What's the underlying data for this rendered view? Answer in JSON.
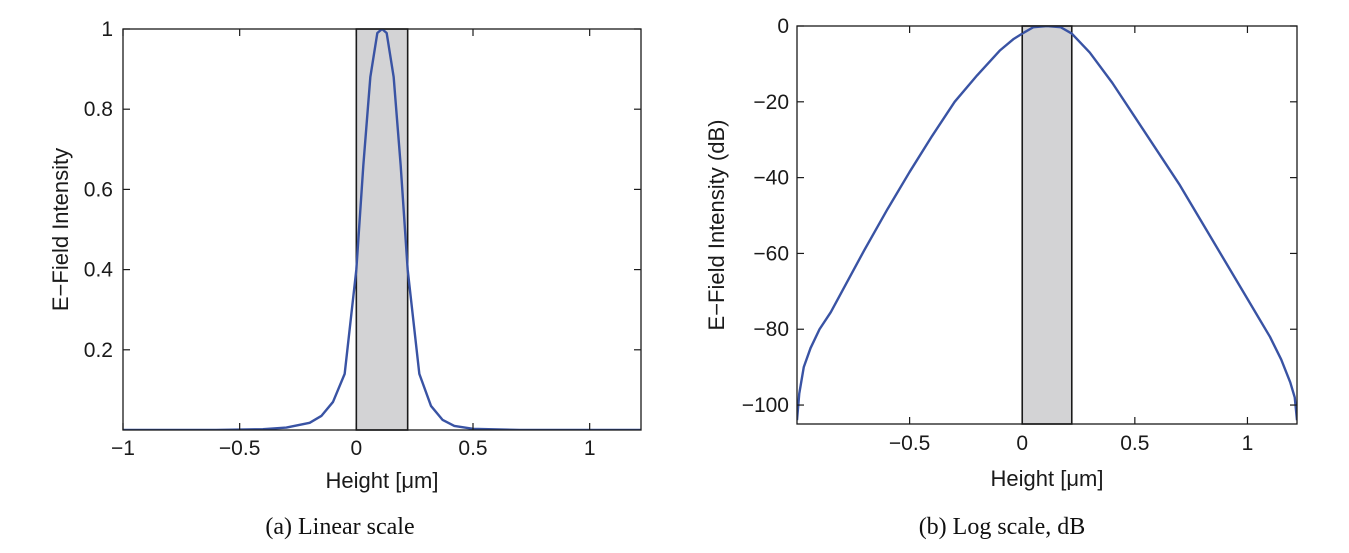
{
  "chart_data": [
    {
      "id": "a",
      "type": "line",
      "caption": "(a) Linear scale",
      "xlabel": "Height [μm]",
      "ylabel": "E−Field Intensity",
      "xlim": [
        -1.0,
        1.22
      ],
      "ylim": [
        0.0,
        1.0
      ],
      "xticks": [
        -1,
        -0.5,
        0,
        0.5,
        1
      ],
      "xtick_labels": [
        "−1",
        "−0.5",
        "0",
        "0.5",
        "1"
      ],
      "yticks": [
        0.2,
        0.4,
        0.6,
        0.8,
        1
      ],
      "ytick_labels": [
        "0.2",
        "0.4",
        "0.6",
        "0.8",
        "1"
      ],
      "shaded_region": {
        "x": [
          0.0,
          0.22
        ],
        "color": "#d3d3d5",
        "label": ""
      },
      "series": [
        {
          "name": "E-field intensity",
          "color": "#3953a4",
          "x": [
            -1.0,
            -0.6,
            -0.4,
            -0.3,
            -0.2,
            -0.15,
            -0.1,
            -0.05,
            0.0,
            0.03,
            0.06,
            0.09,
            0.11,
            0.13,
            0.16,
            0.19,
            0.22,
            0.27,
            0.32,
            0.37,
            0.42,
            0.5,
            0.7,
            1.0,
            1.22
          ],
          "y": [
            0.0,
            0.0,
            0.002,
            0.006,
            0.018,
            0.035,
            0.07,
            0.14,
            0.4,
            0.66,
            0.88,
            0.99,
            1.0,
            0.99,
            0.88,
            0.66,
            0.4,
            0.14,
            0.06,
            0.025,
            0.01,
            0.003,
            0.0,
            0.0,
            0.0
          ]
        }
      ]
    },
    {
      "id": "b",
      "type": "line",
      "caption": "(b) Log scale, dB",
      "xlabel": "Height [μm]",
      "ylabel": "E−Field Intensity (dB)",
      "xlim": [
        -1.0,
        1.22
      ],
      "ylim": [
        -105,
        0
      ],
      "xticks": [
        -0.5,
        0,
        0.5,
        1
      ],
      "xtick_labels": [
        "−0.5",
        "0",
        "0.5",
        "1"
      ],
      "yticks": [
        -100,
        -80,
        -60,
        -40,
        -20,
        0
      ],
      "ytick_labels": [
        "−100",
        "−80",
        "−60",
        "−40",
        "−20",
        "0"
      ],
      "shaded_region": {
        "x": [
          0.0,
          0.22
        ],
        "color": "#d3d3d5",
        "label": ""
      },
      "series": [
        {
          "name": "E-field intensity (dB)",
          "color": "#3953a4",
          "x": [
            -1.0,
            -0.99,
            -0.97,
            -0.94,
            -0.9,
            -0.85,
            -0.8,
            -0.7,
            -0.6,
            -0.5,
            -0.4,
            -0.3,
            -0.2,
            -0.1,
            -0.04,
            0.0,
            0.05,
            0.11,
            0.17,
            0.22,
            0.26,
            0.3,
            0.4,
            0.5,
            0.6,
            0.7,
            0.8,
            0.9,
            1.0,
            1.05,
            1.1,
            1.15,
            1.19,
            1.21,
            1.22
          ],
          "y": [
            -104,
            -97,
            -90,
            -85,
            -80,
            -75.5,
            -70,
            -59,
            -48.5,
            -38.5,
            -29,
            -20,
            -13,
            -6.5,
            -3.5,
            -2,
            -0.3,
            0,
            -0.3,
            -2,
            -4.5,
            -7,
            -15,
            -24,
            -33,
            -42,
            -52,
            -62,
            -72,
            -77,
            -82,
            -88,
            -94,
            -98,
            -104
          ]
        }
      ]
    }
  ]
}
